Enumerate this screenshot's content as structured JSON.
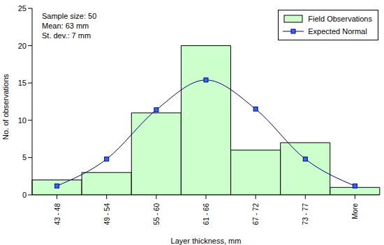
{
  "chart_data": {
    "type": "bar",
    "categories": [
      "43 - 48",
      "49 - 54",
      "55 - 60",
      "61 - 66",
      "67 - 72",
      "73 - 77",
      "More"
    ],
    "series": [
      {
        "name": "Field Observations",
        "type": "bar",
        "color": "#ccffcc",
        "values": [
          2,
          3,
          11,
          20,
          6,
          7,
          1
        ]
      },
      {
        "name": "Expected Normal",
        "type": "line",
        "color": "#000080",
        "marker": "square",
        "values": [
          1.2,
          4.8,
          11.4,
          15.4,
          11.5,
          4.8,
          1.2
        ]
      }
    ],
    "x_label": "Layer thickness, mm",
    "y_label": "No. of observations",
    "annotations": [
      "Sample size: 50",
      "Mean: 63 mm",
      "St. dev.: 7 mm"
    ],
    "ylim": [
      0,
      25
    ],
    "yticks": [
      0,
      5,
      10,
      15,
      20,
      25
    ],
    "grid": false,
    "legend": "upper right"
  }
}
